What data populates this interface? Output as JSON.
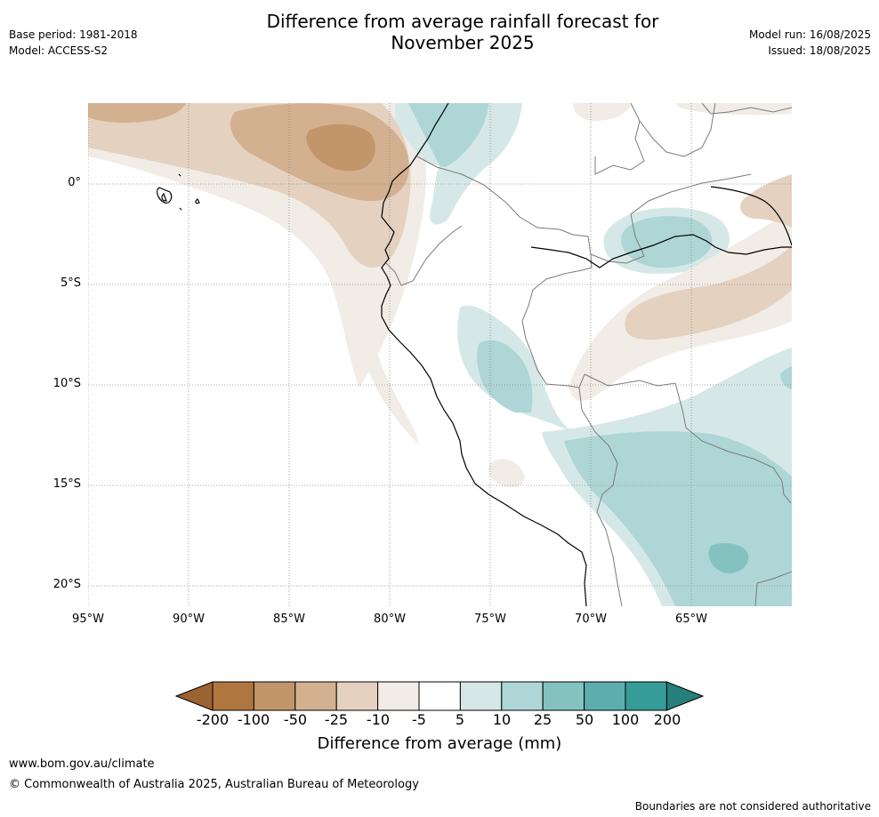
{
  "header": {
    "title_line1": "Difference from average rainfall forecast for",
    "title_line2": "November 2025",
    "base_period": "Base period: 1981-2018",
    "model": "Model: ACCESS-S2",
    "model_run": "Model run: 16/08/2025",
    "issued": "Issued: 18/08/2025"
  },
  "map": {
    "lat_labels": [
      "0°",
      "5°S",
      "10°S",
      "15°S",
      "20°S"
    ],
    "lon_labels": [
      "95°W",
      "90°W",
      "85°W",
      "80°W",
      "75°W",
      "70°W",
      "65°W"
    ]
  },
  "colorbar": {
    "ticks": [
      "-200",
      "-100",
      "-50",
      "-25",
      "-10",
      "-5",
      "5",
      "10",
      "25",
      "50",
      "100",
      "200"
    ],
    "colors": [
      "#9b6232",
      "#b07640",
      "#c3956a",
      "#d3b08f",
      "#e4d1bf",
      "#f1ece6",
      "#ffffff",
      "#d5e8e7",
      "#aed6d6",
      "#84c2c0",
      "#5cadab",
      "#359c97",
      "#267f7a"
    ],
    "label": "Difference from average (mm)"
  },
  "footer": {
    "website": "www.bom.gov.au/climate",
    "copyright": "© Commonwealth of Australia 2025, Australian Bureau of Meteorology",
    "disclaimer": "Boundaries are not considered authoritative"
  }
}
